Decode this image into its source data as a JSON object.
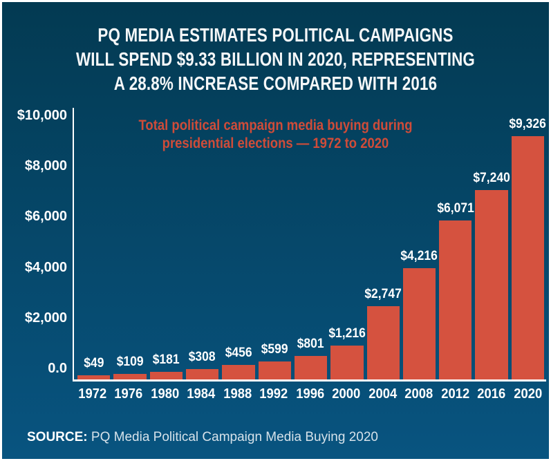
{
  "title": {
    "lines": [
      "PQ MEDIA ESTIMATES POLITICAL CAMPAIGNS",
      "WILL SPEND $9.33 BILLION IN 2020, REPRESENTING",
      "A 28.8% INCREASE COMPARED WITH 2016"
    ]
  },
  "chart_data": {
    "type": "bar",
    "title": "Total political campaign media buying during presidential elections — 1972 to 2020",
    "subtitle_lines": [
      "Total political campaign media buying during",
      "presidential elections — 1972 to 2020"
    ],
    "categories": [
      "1972",
      "1976",
      "1980",
      "1984",
      "1988",
      "1992",
      "1996",
      "2000",
      "2004",
      "2008",
      "2012",
      "2016",
      "2020"
    ],
    "values": [
      49,
      109,
      181,
      308,
      456,
      599,
      801,
      1216,
      2747,
      4216,
      6071,
      7240,
      9326
    ],
    "bar_labels": [
      "$49",
      "$109",
      "$181",
      "$308",
      "$456",
      "$599",
      "$801",
      "$1,216",
      "$2,747",
      "$4,216",
      "$6,071",
      "$7,240",
      "$9,326"
    ],
    "y_axis": {
      "range": [
        0,
        10000
      ],
      "ticks": [
        {
          "label": "$10,000",
          "value": 10000
        },
        {
          "label": "$8,000",
          "value": 8000
        },
        {
          "label": "$6,000",
          "value": 6000
        },
        {
          "label": "$4,000",
          "value": 4000
        },
        {
          "label": "$2,000",
          "value": 2000
        },
        {
          "label": "0.0",
          "value": 0
        }
      ]
    },
    "grid": false,
    "legend": "none",
    "colors": {
      "bar": "#d5523f",
      "axis": "#ffffff",
      "value_label": "#ffffff",
      "subtitle": "#cf4c39"
    }
  },
  "source": {
    "label": "SOURCE:",
    "text": "PQ Media Political Campaign Media Buying 2020"
  },
  "theme": {
    "background_top": "#033a52",
    "background_bottom": "#085480",
    "frame_border": "#ffffff",
    "title_color": "#f5f7f8"
  }
}
